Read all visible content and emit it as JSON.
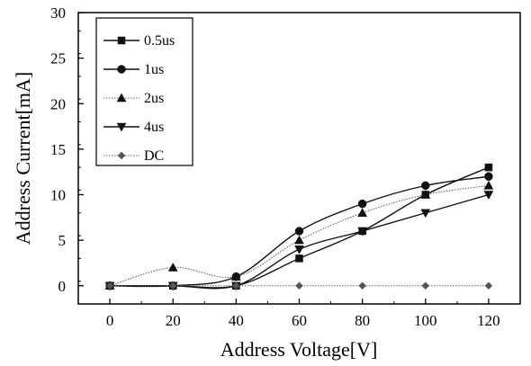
{
  "chart_data": {
    "type": "line",
    "xlabel": "Address Voltage[V]",
    "ylabel": "Address Current[mA]",
    "xlim": [
      -10,
      130
    ],
    "ylim": [
      -2,
      30
    ],
    "xticks": [
      0,
      20,
      40,
      60,
      80,
      100,
      120
    ],
    "yticks": [
      0,
      5,
      10,
      15,
      20,
      25,
      30
    ],
    "x": [
      0,
      20,
      40,
      60,
      80,
      100,
      120
    ],
    "grid": false,
    "legend_position": "top-left",
    "series": [
      {
        "name": "0.5us",
        "marker": "square",
        "line": "solid",
        "values": [
          0,
          0,
          0,
          3,
          6,
          10,
          13
        ]
      },
      {
        "name": "1us",
        "marker": "circle",
        "line": "solid",
        "values": [
          0,
          0,
          1,
          6,
          9,
          11,
          12
        ]
      },
      {
        "name": "2us",
        "marker": "triangle-up",
        "line": "dotted",
        "values": [
          0,
          2,
          1,
          5,
          8,
          10,
          11
        ]
      },
      {
        "name": "4us",
        "marker": "triangle-down",
        "line": "solid",
        "values": [
          0,
          0,
          0,
          4,
          6,
          8,
          10
        ]
      },
      {
        "name": "DC",
        "marker": "diamond",
        "line": "dotted",
        "values": [
          0,
          0,
          0,
          0,
          0,
          0,
          0
        ]
      }
    ]
  }
}
